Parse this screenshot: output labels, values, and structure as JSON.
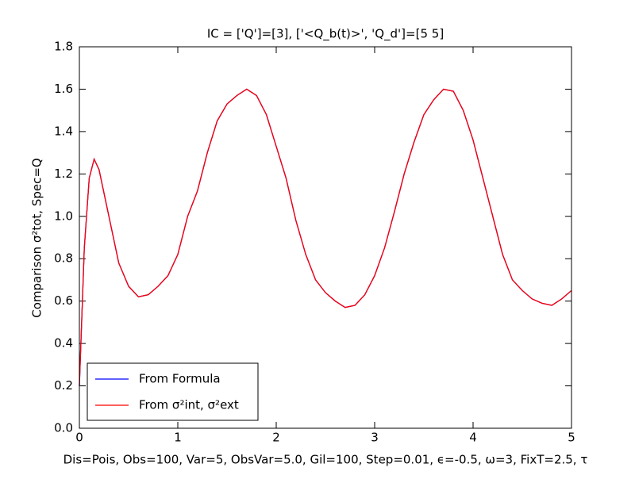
{
  "chart_data": {
    "type": "line",
    "title": "IC = ['Q']=[3], ['<Q_b(t)>', 'Q_d']=[5 5]",
    "xlabel": "Dis=Pois, Obs=100, Var=5, ObsVar=5.0, Gil=100, Step=0.01, ϵ=-0.5, ω=3, FixT=2.5, τ",
    "ylabel": "Comparison σ²tot, Spec=Q",
    "x": [
      0,
      0.05,
      0.1,
      0.15,
      0.2,
      0.3,
      0.4,
      0.5,
      0.6,
      0.7,
      0.8,
      0.9,
      1.0,
      1.1,
      1.2,
      1.3,
      1.4,
      1.5,
      1.6,
      1.7,
      1.8,
      1.9,
      2.0,
      2.1,
      2.2,
      2.3,
      2.4,
      2.5,
      2.6,
      2.7,
      2.8,
      2.9,
      3.0,
      3.1,
      3.2,
      3.3,
      3.4,
      3.5,
      3.6,
      3.7,
      3.8,
      3.9,
      4.0,
      4.1,
      4.2,
      4.3,
      4.4,
      4.5,
      4.6,
      4.7,
      4.8,
      4.9,
      5.0
    ],
    "series": [
      {
        "name": "From Formula",
        "color": "#0000ff",
        "values": [
          0.2,
          0.85,
          1.18,
          1.27,
          1.22,
          1.0,
          0.78,
          0.67,
          0.62,
          0.63,
          0.67,
          0.72,
          0.82,
          1.0,
          1.12,
          1.3,
          1.45,
          1.53,
          1.57,
          1.6,
          1.57,
          1.48,
          1.33,
          1.18,
          0.98,
          0.82,
          0.7,
          0.64,
          0.6,
          0.57,
          0.58,
          0.63,
          0.72,
          0.85,
          1.02,
          1.2,
          1.35,
          1.48,
          1.55,
          1.6,
          1.59,
          1.5,
          1.36,
          1.18,
          1.0,
          0.82,
          0.7,
          0.65,
          0.61,
          0.59,
          0.58,
          0.61,
          0.65
        ]
      },
      {
        "name": "From σ²int, σ²ext",
        "color": "#ff0000",
        "values": [
          0.2,
          0.85,
          1.18,
          1.27,
          1.22,
          1.0,
          0.78,
          0.67,
          0.62,
          0.63,
          0.67,
          0.72,
          0.82,
          1.0,
          1.12,
          1.3,
          1.45,
          1.53,
          1.57,
          1.6,
          1.57,
          1.48,
          1.33,
          1.18,
          0.98,
          0.82,
          0.7,
          0.64,
          0.6,
          0.57,
          0.58,
          0.63,
          0.72,
          0.85,
          1.02,
          1.2,
          1.35,
          1.48,
          1.55,
          1.6,
          1.59,
          1.5,
          1.36,
          1.18,
          1.0,
          0.82,
          0.7,
          0.65,
          0.61,
          0.59,
          0.58,
          0.61,
          0.65
        ]
      }
    ],
    "xlim": [
      0,
      5
    ],
    "xticks": [
      0,
      1,
      2,
      3,
      4,
      5
    ],
    "ylim": [
      0,
      1.8
    ],
    "yticks": [
      {
        "value": 0,
        "label": "0.0"
      },
      0.2,
      0.4,
      0.6,
      0.8,
      {
        "value": 1,
        "label": "1.0"
      },
      1.2,
      1.4,
      1.6,
      1.8
    ],
    "legend": "lower left"
  }
}
